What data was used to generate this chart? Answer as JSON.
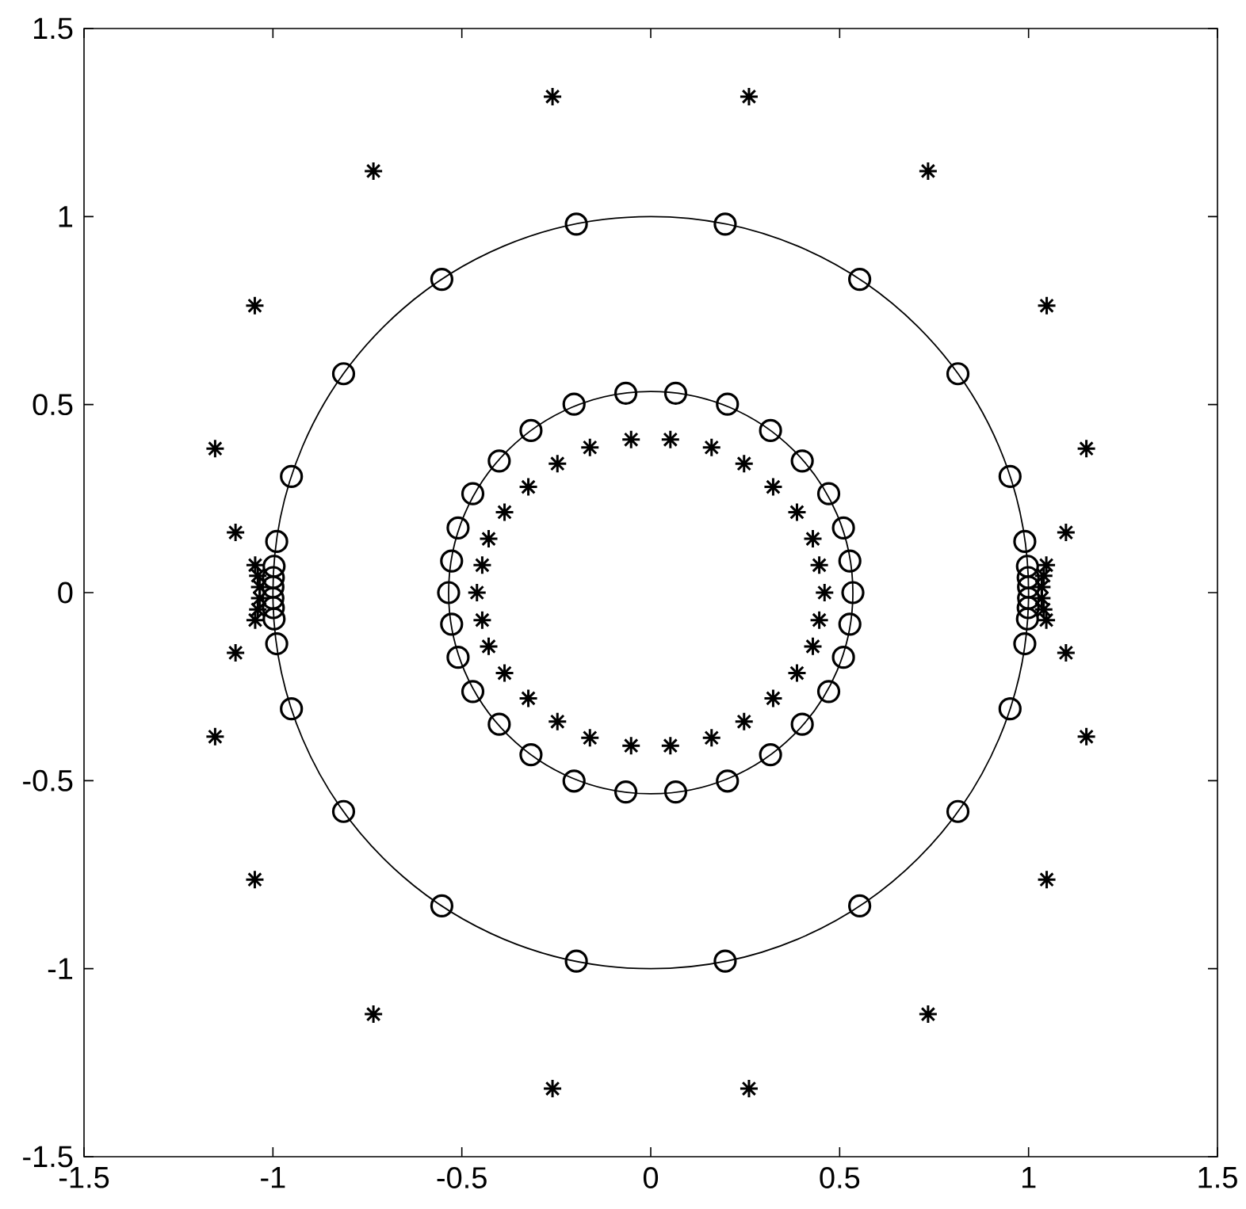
{
  "chart_data": {
    "type": "scatter",
    "xlim": [
      -1.5,
      1.5
    ],
    "ylim": [
      -1.5,
      1.5
    ],
    "xticks": [
      -1.5,
      -1,
      -0.5,
      0,
      0.5,
      1,
      1.5
    ],
    "yticks": [
      -1.5,
      -1,
      -0.5,
      0,
      0.5,
      1,
      1.5
    ],
    "series": [
      {
        "type": "scatter",
        "marker": "circle",
        "color": "#000000",
        "x": [
          0.535,
          0.527,
          0.51,
          0.471,
          0.401,
          0.317,
          0.203,
          0.066,
          -0.066,
          -0.203,
          -0.317,
          -0.401,
          -0.471,
          -0.51,
          -0.527,
          -0.535,
          -0.527,
          -0.51,
          -0.471,
          -0.401,
          -0.317,
          -0.203,
          -0.066,
          0.066,
          0.203,
          0.317,
          0.401,
          0.471,
          0.51,
          0.527,
          0.197,
          0.553,
          0.813,
          0.951,
          0.99,
          0.997,
          0.999,
          1.0,
          1.0,
          0.999,
          0.997,
          0.99,
          0.951,
          0.813,
          0.553,
          0.197,
          -0.197,
          -0.553,
          -0.813,
          -0.951,
          -0.99,
          -0.997,
          -0.999,
          -1.0,
          -1.0,
          -0.999,
          -0.997,
          -0.99,
          -0.951,
          -0.813,
          -0.553,
          -0.197
        ],
        "values": [
          0,
          0.084,
          0.172,
          0.263,
          0.35,
          0.431,
          0.501,
          0.53,
          0.53,
          0.501,
          0.431,
          0.35,
          0.263,
          0.172,
          0.084,
          0,
          -0.084,
          -0.172,
          -0.263,
          -0.35,
          -0.431,
          -0.501,
          -0.53,
          -0.53,
          -0.501,
          -0.431,
          -0.35,
          -0.263,
          -0.172,
          -0.084,
          0.98,
          0.833,
          0.582,
          0.309,
          0.136,
          0.07,
          0.04,
          0.015,
          -0.015,
          -0.04,
          -0.07,
          -0.136,
          -0.309,
          -0.582,
          -0.833,
          -0.98,
          0.98,
          0.833,
          0.582,
          0.309,
          0.136,
          0.07,
          0.04,
          0.015,
          -0.015,
          -0.04,
          -0.07,
          -0.136,
          -0.309,
          -0.582,
          -0.833,
          -0.98
        ]
      },
      {
        "type": "scatter",
        "marker": "cross",
        "color": "#000000",
        "x": [
          0.46,
          0.446,
          0.429,
          0.387,
          0.324,
          0.247,
          0.161,
          0.052,
          -0.052,
          -0.161,
          -0.247,
          -0.324,
          -0.387,
          -0.429,
          -0.446,
          -0.46,
          -0.446,
          -0.429,
          -0.387,
          -0.324,
          -0.247,
          -0.161,
          -0.052,
          0.052,
          0.161,
          0.247,
          0.324,
          0.387,
          0.429,
          0.446,
          0.26,
          0.734,
          1.048,
          1.153,
          1.099,
          1.047,
          1.04,
          1.035,
          1.035,
          1.04,
          1.047,
          1.099,
          1.153,
          1.048,
          0.734,
          0.26,
          -0.26,
          -0.734,
          -1.048,
          -1.153,
          -1.099,
          -1.047,
          -1.04,
          -1.035,
          -1.035,
          -1.04,
          -1.047,
          -1.099,
          -1.153,
          -1.048,
          -0.734,
          -0.26
        ],
        "values": [
          0,
          0.073,
          0.143,
          0.214,
          0.281,
          0.343,
          0.386,
          0.407,
          0.407,
          0.386,
          0.343,
          0.281,
          0.214,
          0.143,
          0.073,
          0,
          -0.073,
          -0.143,
          -0.214,
          -0.281,
          -0.343,
          -0.386,
          -0.407,
          -0.407,
          -0.386,
          -0.343,
          -0.281,
          -0.214,
          -0.143,
          -0.073,
          1.319,
          1.121,
          0.763,
          0.383,
          0.16,
          0.073,
          0.045,
          0.015,
          -0.015,
          -0.045,
          -0.073,
          -0.16,
          -0.383,
          -0.763,
          -1.121,
          -1.319,
          1.319,
          1.121,
          0.763,
          0.383,
          0.16,
          0.073,
          0.045,
          0.015,
          -0.015,
          -0.045,
          -0.073,
          -0.16,
          -0.383,
          -0.763,
          -1.121,
          -1.319
        ]
      }
    ]
  }
}
